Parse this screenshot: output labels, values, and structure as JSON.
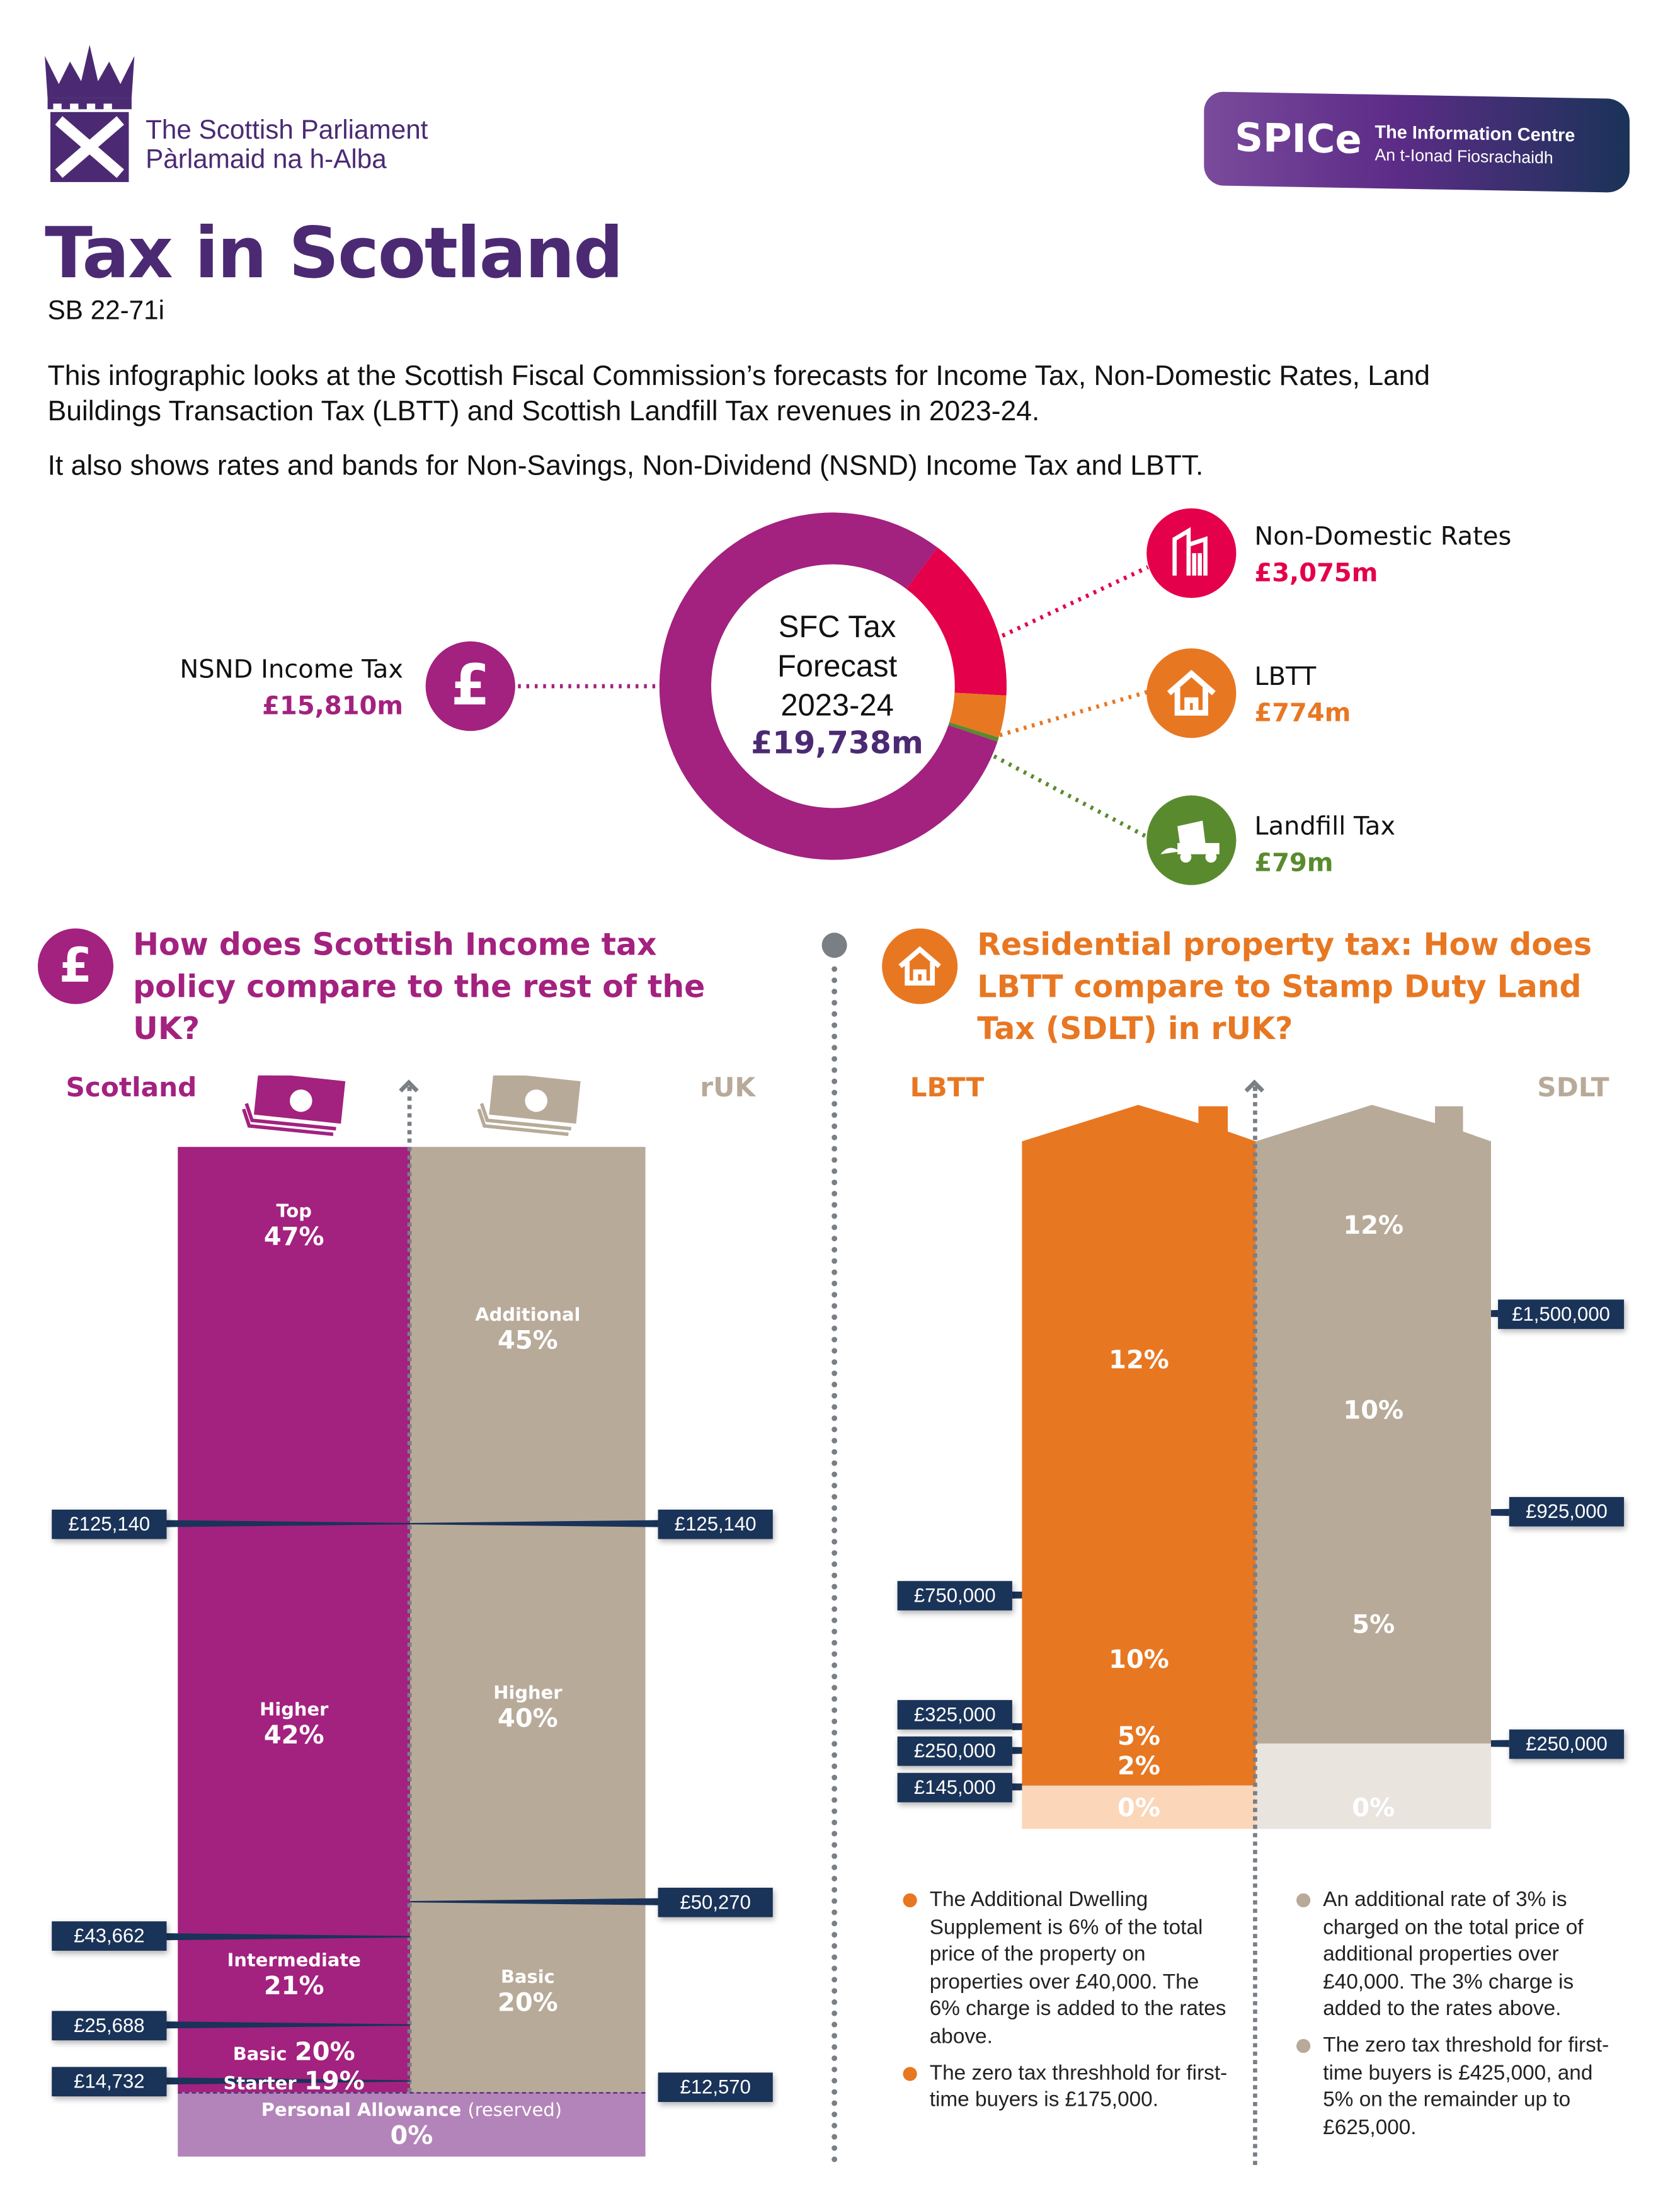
{
  "header": {
    "parliament_en": "The Scottish Parliament",
    "parliament_gd": "Pàrlamaid na h-Alba",
    "spice": "SPICe",
    "spice_en": "The Information Centre",
    "spice_gd": "An t-Ionad Fiosrachaidh"
  },
  "title": "Tax in Scotland",
  "ref": "SB 22-71i",
  "intro": [
    "This infographic looks at the Scottish Fiscal Commission’s forecasts for Income Tax, Non-Domestic Rates, Land Buildings Transaction Tax (LBTT) and Scottish Landfill Tax revenues in 2023-24.",
    "It also shows rates and bands for Non-Savings, Non-Dividend (NSND) Income Tax and LBTT."
  ],
  "chart_data": {
    "type": "pie",
    "center_lines": [
      "SFC Tax",
      "Forecast",
      "2023-24"
    ],
    "center_total": "£19,738m",
    "total": 19738,
    "categories": [
      "NSND Income Tax",
      "Non-Domestic Rates",
      "LBTT",
      "Landfill Tax"
    ],
    "values": [
      15810,
      3075,
      774,
      79
    ],
    "value_labels": [
      "£15,810m",
      "£3,075m",
      "£774m",
      "£79m"
    ],
    "colors": [
      "#a3217f",
      "#e4004a",
      "#e87722",
      "#5a8a2e"
    ]
  },
  "income": {
    "heading": "How does Scottish Income tax policy compare to the rest of the UK?",
    "scotland_label": "Scotland",
    "ruk_label": "rUK",
    "scotland_bands": [
      {
        "name": "Top",
        "rate": "47%"
      },
      {
        "name": "Higher",
        "rate": "42%"
      },
      {
        "name": "Intermediate",
        "rate": "21%"
      },
      {
        "name": "Basic",
        "rate": "20%"
      },
      {
        "name": "Starter",
        "rate": "19%"
      }
    ],
    "ruk_bands": [
      {
        "name": "Additional",
        "rate": "45%"
      },
      {
        "name": "Higher",
        "rate": "40%"
      },
      {
        "name": "Basic",
        "rate": "20%"
      }
    ],
    "scotland_thresholds": [
      "£125,140",
      "£43,662",
      "£25,688",
      "£14,732"
    ],
    "ruk_thresholds": [
      "£125,140",
      "£50,270",
      "£12,570"
    ],
    "personal_allowance": "Personal Allowance",
    "pa_note": "(reserved)",
    "pa_rate": "0%",
    "colors": {
      "scotland": "#a3217f",
      "ruk": "#b8aa99",
      "pa": "#b384b9",
      "threshold": "#1a3358"
    }
  },
  "property": {
    "heading": "Residential property tax: How does LBTT compare to Stamp Duty Land Tax (SDLT) in rUK?",
    "lbtt_label": "LBTT",
    "sdlt_label": "SDLT",
    "lbtt_rates": [
      "12%",
      "10%",
      "5%",
      "2%",
      "0%"
    ],
    "sdlt_rates": [
      "12%",
      "10%",
      "5%",
      "0%"
    ],
    "lbtt_thresholds": [
      "£750,000",
      "£325,000",
      "£250,000",
      "£145,000"
    ],
    "sdlt_thresholds": [
      "£1,500,000",
      "£925,000",
      "£250,000"
    ],
    "lbtt_notes": [
      "The Additional Dwelling Supplement is 6% of the total price of the property on properties over £40,000. The 6% charge is added to the rates above.",
      "The zero tax threshhold for first-time buyers is £175,000."
    ],
    "sdlt_notes": [
      "An additional rate of 3% is charged on the total price of additional properties over £40,000. The 3% charge is added to the rates above.",
      "The zero tax threshold for first-time buyers is £425,000, and 5% on the remainder up to £625,000."
    ],
    "colors": {
      "lbtt": "#e87722",
      "lbtt_zero": "#fbd6b8",
      "sdlt": "#b8aa99",
      "sdlt_zero": "#e9e4de"
    }
  }
}
